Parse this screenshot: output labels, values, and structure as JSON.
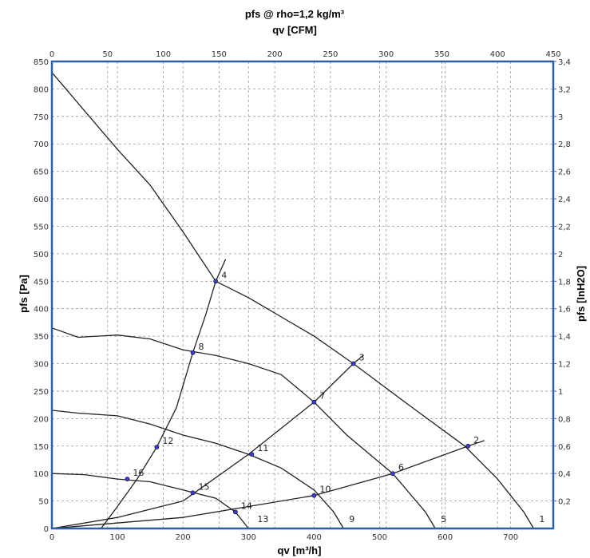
{
  "chart_data": {
    "type": "line",
    "title": "pfs @ rho=1,2 kg/m³",
    "top_axis": {
      "label": "qv [CFM]",
      "range": [
        0,
        450
      ],
      "ticks": [
        0,
        50,
        100,
        150,
        200,
        250,
        300,
        350,
        400,
        450
      ]
    },
    "x_axis": {
      "label": "qv [m³/h]",
      "range": [
        0,
        765
      ],
      "ticks": [
        0,
        100,
        200,
        300,
        400,
        500,
        600,
        700
      ]
    },
    "y_axis": {
      "label": "pfs [Pa]",
      "range": [
        0,
        850
      ],
      "ticks": [
        0,
        50,
        100,
        150,
        200,
        250,
        300,
        350,
        400,
        450,
        500,
        550,
        600,
        650,
        700,
        750,
        800,
        850
      ]
    },
    "right_axis": {
      "label": "pfs [InH2O]",
      "range": [
        0,
        3.4
      ],
      "ticks": [
        "0,2",
        "0,4",
        "0,6",
        "0,8",
        "1",
        "1,2",
        "1,4",
        "1,6",
        "1,8",
        "2",
        "2,2",
        "2,4",
        "2,6",
        "2,8",
        "3",
        "3,2",
        "3,4"
      ]
    },
    "grid": true,
    "series": [
      {
        "points": [
          [
            0,
            830
          ],
          [
            50,
            760
          ],
          [
            100,
            690
          ],
          [
            150,
            625
          ],
          [
            200,
            540
          ],
          [
            250,
            450
          ],
          [
            300,
            420
          ],
          [
            350,
            385
          ],
          [
            400,
            350
          ],
          [
            460,
            300
          ],
          [
            550,
            220
          ],
          [
            630,
            150
          ],
          [
            680,
            90
          ],
          [
            720,
            30
          ],
          [
            735,
            0
          ]
        ]
      },
      {
        "points": [
          [
            0,
            365
          ],
          [
            40,
            348
          ],
          [
            100,
            352
          ],
          [
            150,
            345
          ],
          [
            200,
            325
          ],
          [
            250,
            315
          ],
          [
            300,
            300
          ],
          [
            350,
            280
          ],
          [
            400,
            230
          ],
          [
            450,
            170
          ],
          [
            520,
            100
          ],
          [
            570,
            30
          ],
          [
            585,
            0
          ]
        ]
      },
      {
        "points": [
          [
            0,
            215
          ],
          [
            40,
            210
          ],
          [
            100,
            205
          ],
          [
            150,
            190
          ],
          [
            200,
            170
          ],
          [
            250,
            155
          ],
          [
            300,
            135
          ],
          [
            350,
            110
          ],
          [
            400,
            70
          ],
          [
            430,
            30
          ],
          [
            445,
            0
          ]
        ]
      },
      {
        "points": [
          [
            0,
            100
          ],
          [
            50,
            98
          ],
          [
            100,
            90
          ],
          [
            150,
            85
          ],
          [
            200,
            70
          ],
          [
            250,
            55
          ],
          [
            280,
            30
          ],
          [
            300,
            0
          ]
        ]
      },
      {
        "points": [
          [
            75,
            0
          ],
          [
            100,
            40
          ],
          [
            130,
            90
          ],
          [
            160,
            148
          ],
          [
            190,
            220
          ],
          [
            215,
            320
          ],
          [
            235,
            390
          ],
          [
            250,
            450
          ],
          [
            265,
            490
          ]
        ]
      },
      {
        "points": [
          [
            0,
            0
          ],
          [
            100,
            20
          ],
          [
            200,
            50
          ],
          [
            300,
            135
          ],
          [
            400,
            230
          ],
          [
            460,
            300
          ],
          [
            475,
            315
          ]
        ]
      },
      {
        "points": [
          [
            0,
            0
          ],
          [
            200,
            20
          ],
          [
            300,
            40
          ],
          [
            400,
            60
          ],
          [
            520,
            100
          ],
          [
            635,
            150
          ],
          [
            660,
            160
          ]
        ]
      }
    ],
    "points": [
      {
        "label": "1",
        "x": 735,
        "y": 0
      },
      {
        "label": "2",
        "x": 635,
        "y": 150
      },
      {
        "label": "3",
        "x": 460,
        "y": 300
      },
      {
        "label": "4",
        "x": 250,
        "y": 450
      },
      {
        "label": "5",
        "x": 585,
        "y": 0
      },
      {
        "label": "6",
        "x": 520,
        "y": 100
      },
      {
        "label": "7",
        "x": 400,
        "y": 230
      },
      {
        "label": "8",
        "x": 215,
        "y": 320
      },
      {
        "label": "9",
        "x": 445,
        "y": 0
      },
      {
        "label": "10",
        "x": 400,
        "y": 60
      },
      {
        "label": "11",
        "x": 305,
        "y": 135
      },
      {
        "label": "12",
        "x": 160,
        "y": 148
      },
      {
        "label": "13",
        "x": 305,
        "y": 0
      },
      {
        "label": "14",
        "x": 280,
        "y": 30
      },
      {
        "label": "15",
        "x": 215,
        "y": 65
      },
      {
        "label": "16",
        "x": 115,
        "y": 90
      }
    ],
    "colors": {
      "line": "#222222",
      "grid": "#999999",
      "frame": "#2f5fa8",
      "marker": "#3b3bd1"
    }
  }
}
